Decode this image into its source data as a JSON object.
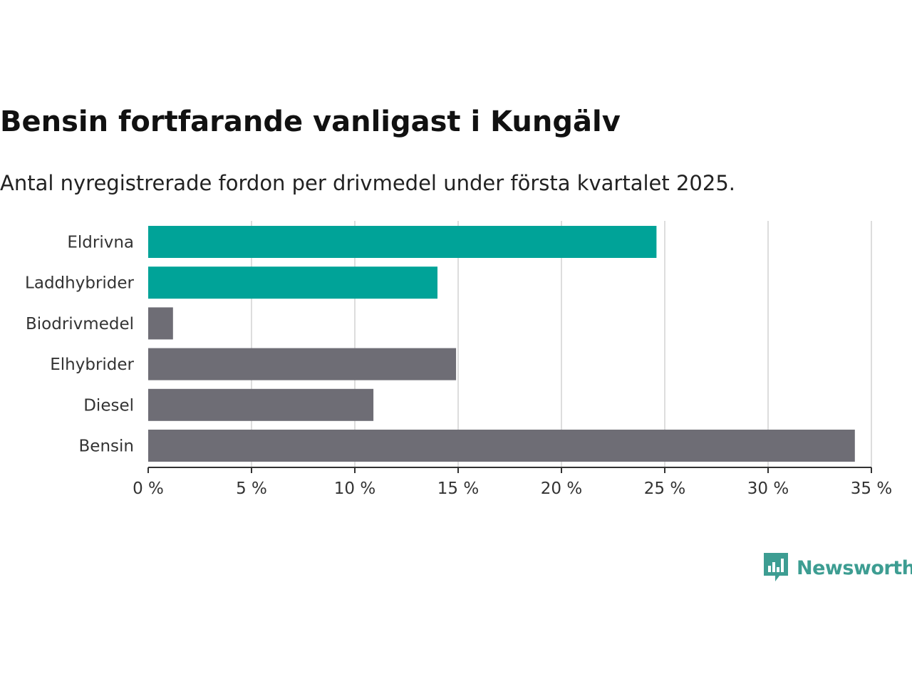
{
  "title": "Bensin fortfarande vanligast i Kungälv",
  "subtitle": "Antal nyregistrerade fordon per drivmedel under första kvartalet 2025.",
  "brand": {
    "name": "Newsworthy",
    "color": "#3d9d92",
    "icon": "bar-chart-icon"
  },
  "colors": {
    "highlight": "#00a398",
    "default": "#6e6d75",
    "grid": "#dddddd",
    "axis": "#333333"
  },
  "chart_data": {
    "type": "bar",
    "orientation": "horizontal",
    "categories": [
      "Eldrivna",
      "Laddhybrider",
      "Biodrivmedel",
      "Elhybrider",
      "Diesel",
      "Bensin"
    ],
    "values": [
      24.6,
      14.0,
      1.2,
      14.9,
      10.9,
      34.2
    ],
    "highlighted": [
      true,
      true,
      false,
      false,
      false,
      false
    ],
    "xlim": [
      0,
      35
    ],
    "xticks": [
      0,
      5,
      10,
      15,
      20,
      25,
      30,
      35
    ],
    "xtick_labels": [
      "0 %",
      "5 %",
      "10 %",
      "15 %",
      "20 %",
      "25 %",
      "30 %",
      "35 %"
    ],
    "grid": "vertical"
  }
}
